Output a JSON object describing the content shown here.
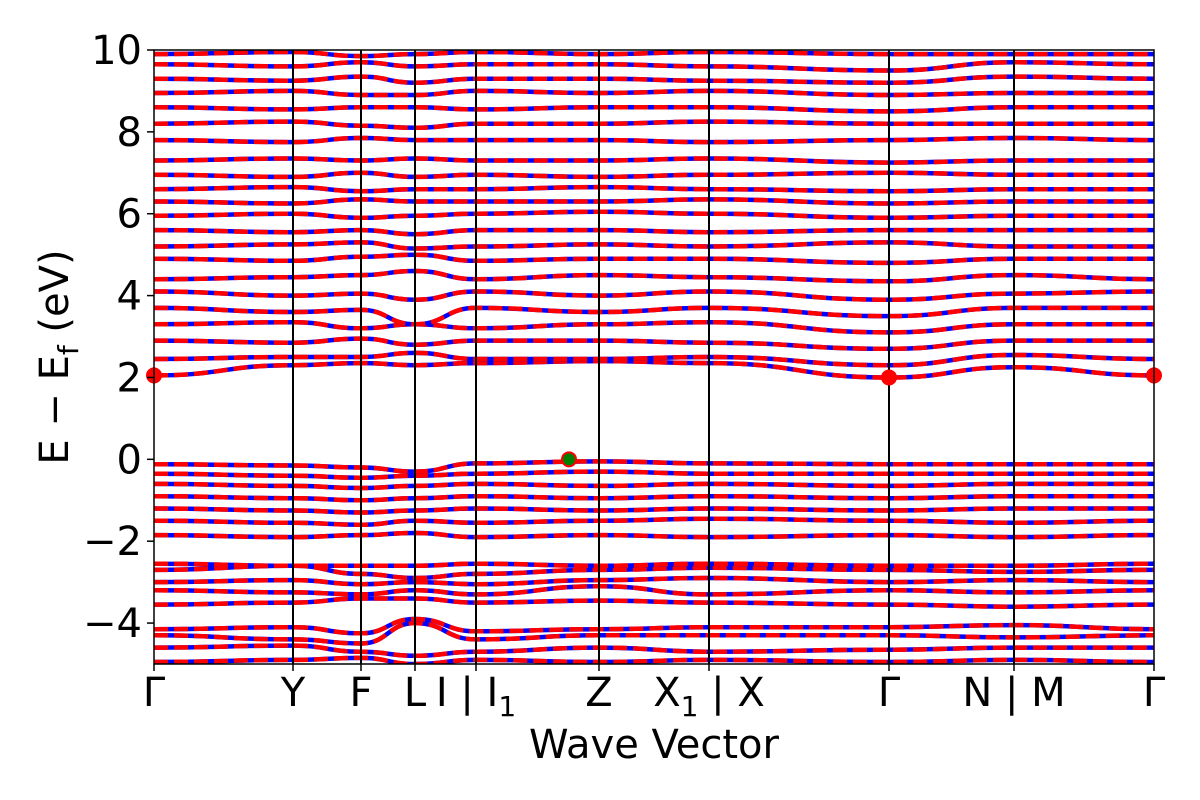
{
  "chart_data": {
    "type": "line",
    "title": "",
    "xlabel": "Wave Vector",
    "ylabel": "E − E_f (eV)",
    "ylabel_parts": {
      "main": "E − E",
      "sub": "f",
      "unit": " (eV)"
    },
    "ylim": [
      -5,
      10
    ],
    "yticks": [
      {
        "value": -4,
        "label": "−4"
      },
      {
        "value": -2,
        "label": "−2"
      },
      {
        "value": 0,
        "label": "0"
      },
      {
        "value": 2,
        "label": "2"
      },
      {
        "value": 4,
        "label": "4"
      },
      {
        "value": 6,
        "label": "6"
      },
      {
        "value": 8,
        "label": "8"
      },
      {
        "value": 10,
        "label": "10"
      }
    ],
    "xlim": [
      0,
      1
    ],
    "kpoints": [
      {
        "label": "Γ",
        "x": 0.0
      },
      {
        "label": "Y",
        "x": 0.139
      },
      {
        "label": "F",
        "x": 0.207
      },
      {
        "label": "L",
        "x": 0.261
      },
      {
        "label": "I | I",
        "sub": "1",
        "x": 0.322
      },
      {
        "label": "Z",
        "x": 0.445
      },
      {
        "label": "X",
        "sub": "1",
        "suffix": " | X",
        "x": 0.555
      },
      {
        "label": "Γ",
        "x": 0.735
      },
      {
        "label": "N | M",
        "x": 0.86
      },
      {
        "label": "Γ",
        "x": 1.0
      }
    ],
    "grid": false,
    "legend": "none",
    "series_styles": [
      {
        "color": "#0000ff",
        "linestyle": "solid"
      },
      {
        "color": "#ff0000",
        "linestyle": "dashed"
      }
    ],
    "markers": [
      {
        "kind": "CBM",
        "color": "#ff0000",
        "points": [
          [
            0.0,
            2.05
          ],
          [
            0.735,
            2.0
          ],
          [
            1.0,
            2.05
          ]
        ]
      },
      {
        "kind": "VBM",
        "color": "#008000",
        "edgecolor": "#ff0000",
        "points": [
          [
            0.415,
            0.0
          ]
        ]
      }
    ],
    "bands": [
      {
        "y": [
          -4.95,
          -4.9,
          -4.85,
          -5.0,
          -4.9,
          -4.95,
          -4.9,
          -4.95,
          -4.9,
          -4.95
        ]
      },
      {
        "y": [
          -4.6,
          -4.55,
          -4.7,
          -4.8,
          -4.7,
          -4.6,
          -4.7,
          -4.65,
          -4.6,
          -4.6
        ]
      },
      {
        "y": [
          -4.3,
          -4.4,
          -4.5,
          -4.0,
          -4.4,
          -4.3,
          -4.3,
          -4.3,
          -4.35,
          -4.3
        ]
      },
      {
        "y": [
          -4.15,
          -4.1,
          -4.25,
          -3.9,
          -4.2,
          -4.15,
          -4.1,
          -4.1,
          -4.05,
          -4.15
        ]
      },
      {
        "y": [
          -3.55,
          -3.5,
          -3.4,
          -3.4,
          -3.5,
          -3.45,
          -3.5,
          -3.55,
          -3.6,
          -3.55
        ]
      },
      {
        "y": [
          -3.2,
          -3.25,
          -3.3,
          -3.2,
          -3.3,
          -3.1,
          -3.3,
          -3.2,
          -3.25,
          -3.2
        ]
      },
      {
        "y": [
          -3.0,
          -2.95,
          -3.05,
          -3.0,
          -3.05,
          -2.95,
          -2.9,
          -3.0,
          -2.95,
          -3.0
        ]
      },
      {
        "y": [
          -2.7,
          -2.6,
          -2.8,
          -2.9,
          -2.8,
          -2.7,
          -2.65,
          -2.7,
          -2.75,
          -2.7
        ]
      },
      {
        "y": [
          -2.55,
          -2.6,
          -2.6,
          -2.6,
          -2.55,
          -2.6,
          -2.55,
          -2.6,
          -2.6,
          -2.55
        ]
      },
      {
        "y": [
          -1.85,
          -1.9,
          -1.85,
          -1.8,
          -1.9,
          -1.85,
          -1.9,
          -1.85,
          -1.9,
          -1.85
        ]
      },
      {
        "y": [
          -1.5,
          -1.55,
          -1.6,
          -1.5,
          -1.55,
          -1.5,
          -1.45,
          -1.5,
          -1.55,
          -1.5
        ]
      },
      {
        "y": [
          -1.2,
          -1.25,
          -1.3,
          -1.25,
          -1.2,
          -1.25,
          -1.2,
          -1.25,
          -1.2,
          -1.2
        ]
      },
      {
        "y": [
          -0.9,
          -0.95,
          -1.0,
          -0.95,
          -0.9,
          -0.95,
          -0.9,
          -0.95,
          -0.9,
          -0.9
        ]
      },
      {
        "y": [
          -0.6,
          -0.65,
          -0.7,
          -0.65,
          -0.6,
          -0.65,
          -0.6,
          -0.65,
          -0.6,
          -0.6
        ]
      },
      {
        "y": [
          -0.35,
          -0.4,
          -0.45,
          -0.4,
          -0.35,
          -0.3,
          -0.35,
          -0.35,
          -0.35,
          -0.35
        ]
      },
      {
        "y": [
          -0.12,
          -0.15,
          -0.2,
          -0.3,
          -0.1,
          -0.05,
          -0.1,
          -0.12,
          -0.12,
          -0.12
        ]
      },
      {
        "y": [
          2.05,
          2.3,
          2.35,
          2.3,
          2.35,
          2.4,
          2.35,
          2.0,
          2.25,
          2.05
        ]
      },
      {
        "y": [
          2.45,
          2.5,
          2.5,
          2.6,
          2.45,
          2.45,
          2.5,
          2.3,
          2.55,
          2.45
        ]
      },
      {
        "y": [
          2.9,
          2.85,
          2.95,
          2.8,
          2.9,
          2.9,
          2.85,
          2.7,
          2.9,
          2.9
        ]
      },
      {
        "y": [
          3.3,
          3.35,
          3.2,
          3.3,
          3.2,
          3.3,
          3.35,
          3.1,
          3.3,
          3.3
        ]
      },
      {
        "y": [
          3.7,
          3.6,
          3.65,
          3.3,
          3.7,
          3.6,
          3.7,
          3.5,
          3.7,
          3.7
        ]
      },
      {
        "y": [
          4.1,
          4.0,
          4.05,
          3.9,
          4.1,
          4.0,
          4.1,
          3.9,
          4.05,
          4.1
        ]
      },
      {
        "y": [
          4.4,
          4.45,
          4.5,
          4.6,
          4.4,
          4.5,
          4.45,
          4.35,
          4.5,
          4.4
        ]
      },
      {
        "y": [
          4.9,
          4.85,
          4.95,
          5.0,
          4.85,
          4.9,
          4.9,
          4.8,
          4.9,
          4.9
        ]
      },
      {
        "y": [
          5.2,
          5.25,
          5.3,
          5.15,
          5.2,
          5.25,
          5.2,
          5.3,
          5.2,
          5.2
        ]
      },
      {
        "y": [
          5.6,
          5.55,
          5.6,
          5.5,
          5.6,
          5.6,
          5.55,
          5.6,
          5.6,
          5.6
        ]
      },
      {
        "y": [
          5.95,
          6.0,
          5.9,
          5.95,
          6.0,
          6.05,
          6.0,
          5.9,
          5.95,
          5.95
        ]
      },
      {
        "y": [
          6.3,
          6.25,
          6.35,
          6.3,
          6.3,
          6.3,
          6.35,
          6.25,
          6.3,
          6.3
        ]
      },
      {
        "y": [
          6.6,
          6.65,
          6.55,
          6.6,
          6.6,
          6.65,
          6.6,
          6.55,
          6.6,
          6.6
        ]
      },
      {
        "y": [
          6.95,
          6.9,
          7.0,
          6.9,
          6.95,
          6.9,
          6.95,
          7.0,
          6.95,
          6.95
        ]
      },
      {
        "y": [
          7.3,
          7.35,
          7.3,
          7.35,
          7.3,
          7.3,
          7.35,
          7.25,
          7.3,
          7.3
        ]
      },
      {
        "y": [
          7.8,
          7.75,
          7.85,
          7.8,
          7.8,
          7.8,
          7.75,
          7.8,
          7.85,
          7.8
        ]
      },
      {
        "y": [
          8.2,
          8.25,
          8.15,
          8.1,
          8.2,
          8.2,
          8.25,
          8.2,
          8.2,
          8.2
        ]
      },
      {
        "y": [
          8.6,
          8.55,
          8.6,
          8.6,
          8.55,
          8.6,
          8.6,
          8.5,
          8.6,
          8.6
        ]
      },
      {
        "y": [
          8.95,
          9.0,
          8.9,
          8.9,
          9.0,
          8.95,
          9.0,
          8.9,
          8.95,
          8.95
        ]
      },
      {
        "y": [
          9.3,
          9.25,
          9.35,
          9.2,
          9.3,
          9.3,
          9.25,
          9.2,
          9.35,
          9.3
        ]
      },
      {
        "y": [
          9.65,
          9.6,
          9.7,
          9.6,
          9.65,
          9.65,
          9.6,
          9.5,
          9.7,
          9.65
        ]
      },
      {
        "y": [
          9.9,
          9.95,
          9.85,
          9.9,
          9.95,
          9.9,
          9.95,
          9.9,
          9.9,
          9.9
        ]
      }
    ]
  }
}
